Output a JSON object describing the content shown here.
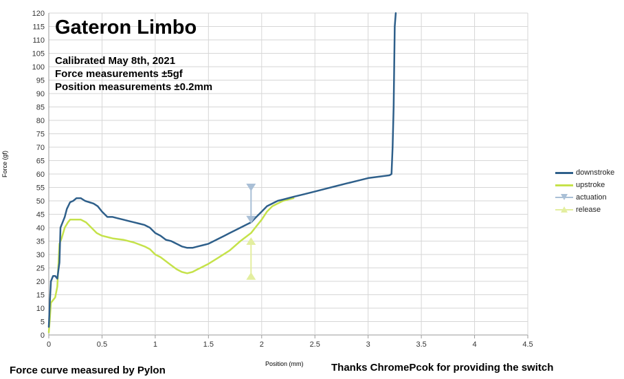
{
  "chart_data": {
    "type": "line",
    "title": "Gateron Limbo",
    "notes": [
      "Calibrated May 8th, 2021",
      "Force measurements ±5gf",
      "Position measurements ±0.2mm"
    ],
    "xlabel": "Position (mm)",
    "ylabel": "Force (gf)",
    "xlim": [
      0,
      4.5
    ],
    "ylim": [
      0,
      120
    ],
    "xticks": [
      0,
      0.5,
      1,
      1.5,
      2,
      2.5,
      3,
      3.5,
      4,
      4.5
    ],
    "xtick_labels": [
      "0",
      "0.5",
      "1",
      "1.5",
      "2",
      "2.5",
      "3",
      "3.5",
      "4",
      "4.5"
    ],
    "yticks": [
      0,
      5,
      10,
      15,
      20,
      25,
      30,
      35,
      40,
      45,
      50,
      55,
      60,
      65,
      70,
      75,
      80,
      85,
      90,
      95,
      100,
      105,
      110,
      115,
      120
    ],
    "grid": true,
    "legend_position": "right",
    "series": [
      {
        "name": "downstroke",
        "color": "#2e5f8a",
        "x": [
          0.0,
          0.01,
          0.02,
          0.04,
          0.06,
          0.08,
          0.09,
          0.1,
          0.11,
          0.13,
          0.15,
          0.17,
          0.2,
          0.23,
          0.26,
          0.3,
          0.34,
          0.38,
          0.42,
          0.46,
          0.5,
          0.55,
          0.6,
          0.65,
          0.7,
          0.75,
          0.8,
          0.85,
          0.9,
          0.95,
          1.0,
          1.05,
          1.1,
          1.15,
          1.2,
          1.25,
          1.3,
          1.35,
          1.4,
          1.45,
          1.5,
          1.55,
          1.6,
          1.65,
          1.7,
          1.75,
          1.8,
          1.85,
          1.9,
          1.95,
          2.0,
          2.05,
          2.1,
          2.15,
          2.2,
          2.3,
          2.4,
          2.5,
          2.6,
          2.7,
          2.8,
          2.9,
          3.0,
          3.1,
          3.2,
          3.22,
          3.23,
          3.24,
          3.245,
          3.25,
          3.26
        ],
        "y": [
          3,
          12,
          20,
          22,
          22,
          21,
          24,
          27,
          40,
          42,
          44,
          47,
          49.5,
          50,
          51,
          51,
          50,
          49.5,
          49,
          48,
          46,
          44,
          44,
          43.5,
          43,
          42.5,
          42,
          41.5,
          41,
          40,
          38,
          37,
          35.5,
          35,
          34,
          33,
          32.5,
          32.5,
          33,
          33.5,
          34,
          35,
          36,
          37,
          38,
          39,
          40,
          41,
          42,
          44,
          46,
          48,
          49,
          50,
          50.5,
          51.5,
          52.5,
          53.5,
          54.5,
          55.5,
          56.5,
          57.5,
          58.5,
          59,
          59.5,
          60,
          70,
          85,
          100,
          115,
          120
        ]
      },
      {
        "name": "upstroke",
        "color": "#c5e24a",
        "x": [
          0.0,
          0.01,
          0.02,
          0.04,
          0.06,
          0.08,
          0.1,
          0.12,
          0.15,
          0.18,
          0.2,
          0.25,
          0.3,
          0.35,
          0.4,
          0.45,
          0.5,
          0.55,
          0.6,
          0.7,
          0.8,
          0.9,
          0.95,
          1.0,
          1.05,
          1.1,
          1.15,
          1.2,
          1.25,
          1.3,
          1.35,
          1.4,
          1.5,
          1.6,
          1.7,
          1.8,
          1.9,
          1.95,
          2.0,
          2.05,
          2.1,
          2.2,
          2.3
        ],
        "y": [
          1,
          6,
          12,
          13,
          14,
          18,
          34,
          36,
          40,
          42,
          43,
          43,
          43,
          42,
          40,
          38,
          37,
          36.5,
          36,
          35.5,
          34.5,
          33,
          32,
          30,
          29,
          27.5,
          26,
          24.5,
          23.5,
          23,
          23.5,
          24.5,
          26.5,
          29,
          31.5,
          35,
          38,
          40.5,
          43,
          46,
          48,
          50,
          51
        ]
      }
    ],
    "markers": [
      {
        "name": "actuation",
        "color": "#a9bfd6",
        "shape": "triangle-down",
        "x": 1.9,
        "y_from": 55,
        "y_to": 43
      },
      {
        "name": "release",
        "color": "#e3ee9f",
        "shape": "triangle-up",
        "x": 1.9,
        "y_from": 22,
        "y_to": 35
      }
    ]
  },
  "footer": {
    "left": "Force curve measured by Pylon",
    "right": "Thanks ChromePcok for providing the switch"
  }
}
